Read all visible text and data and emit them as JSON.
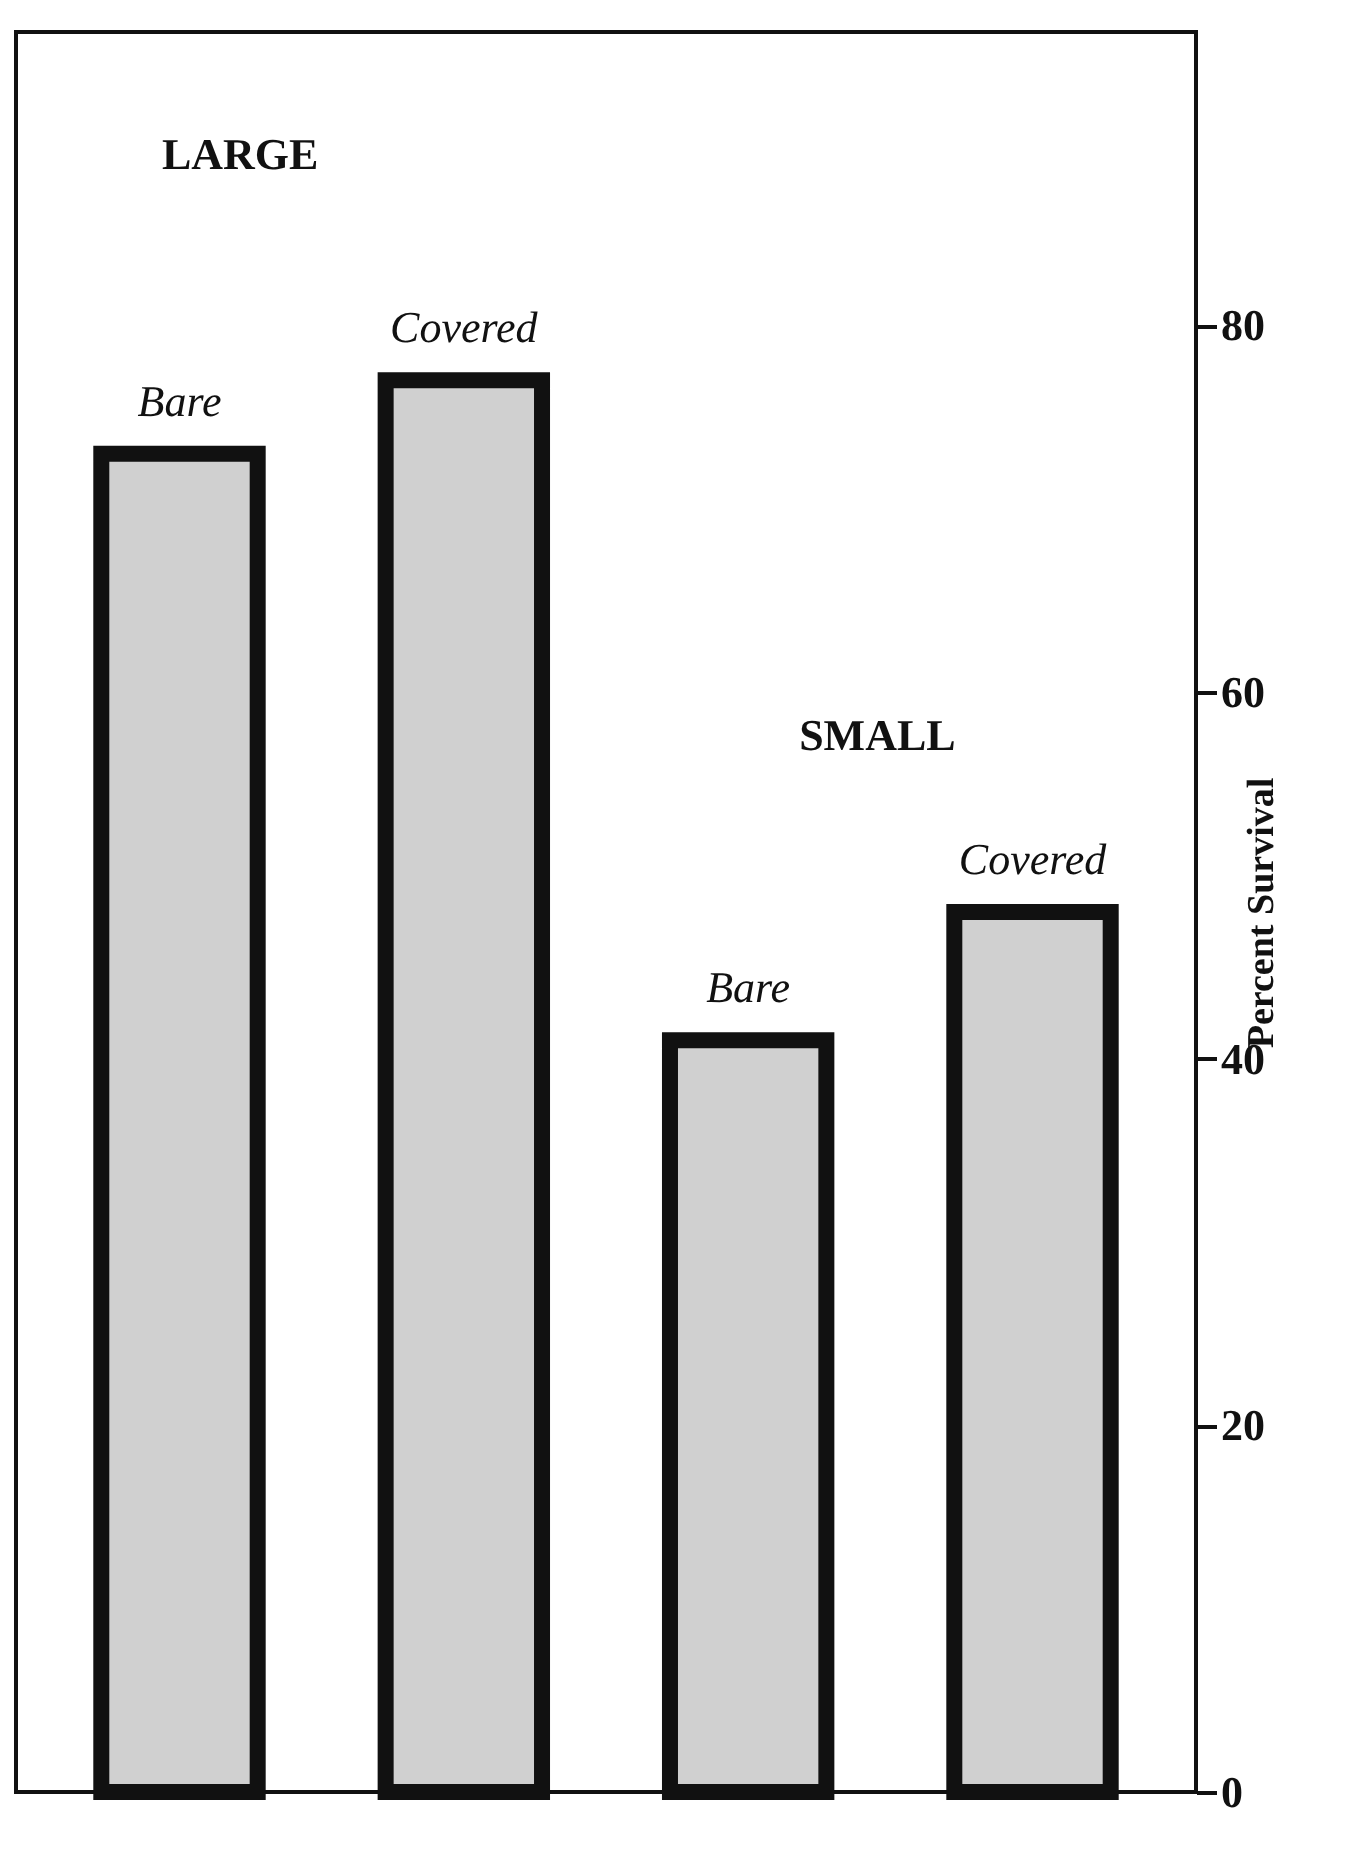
{
  "chart_data": {
    "type": "bar",
    "ylabel": "Percent Survival",
    "categories": [
      "Bare",
      "Covered",
      "Bare",
      "Covered"
    ],
    "values": [
      73,
      77,
      41,
      48
    ],
    "color": "#d0d0d0",
    "ylim": [
      0,
      96
    ],
    "yticks": [
      0,
      20,
      40,
      60,
      80
    ],
    "tick_labels": "y",
    "annotations": [
      "LARGE",
      "SMALL"
    ]
  }
}
